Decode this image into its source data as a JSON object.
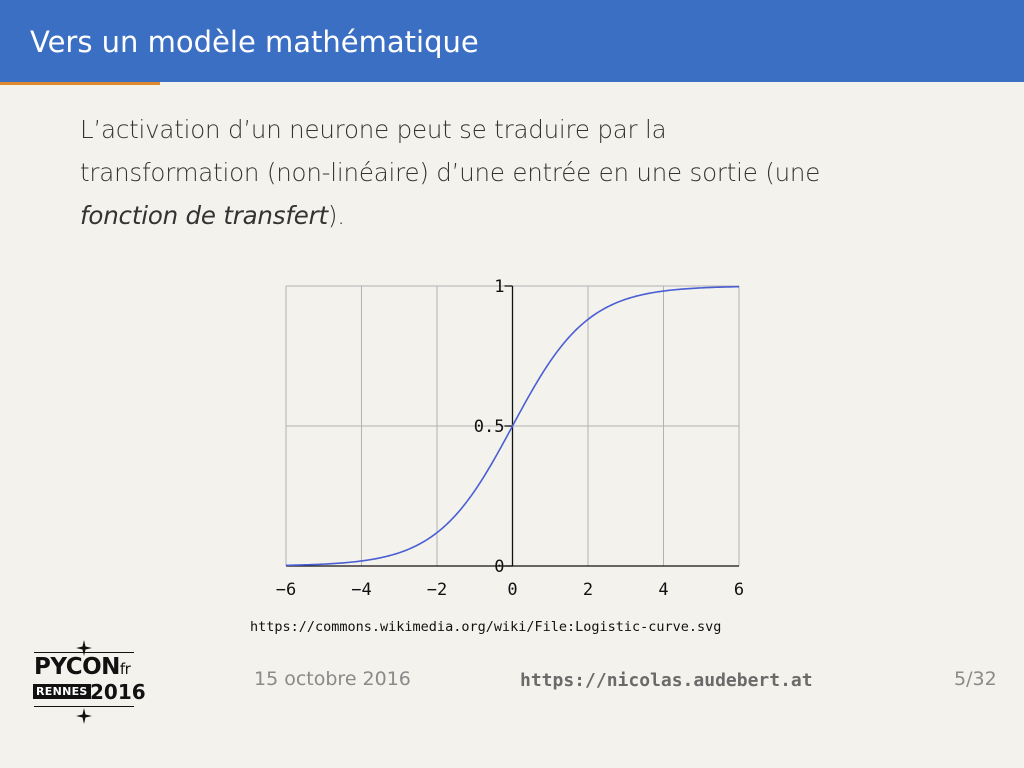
{
  "slide": {
    "title": "Vers un modèle mathématique",
    "text_line1": "L’activation d’un neurone peut se traduire par la",
    "text_line2": "transformation (non-linéaire) d’une entrée en une sortie (une",
    "text_emphasis": "fonction de transfert",
    "text_end": ")."
  },
  "source_url": "https://commons.wikimedia.org/wiki/File:Logistic-curve.svg",
  "footer": {
    "date": "15 octobre 2016",
    "url": "https://nicolas.audebert.at",
    "page": "5/32"
  },
  "logo": {
    "top": "PYCON",
    "fr": "fr",
    "city": "RENNES",
    "year": "2016"
  },
  "colors": {
    "header": "#3b6fc4",
    "accent": "#e08a2e",
    "curve": "#4a5fd4"
  },
  "chart_data": {
    "type": "line",
    "xlim": [
      -6,
      6
    ],
    "ylim": [
      0,
      1
    ],
    "x_ticks": [
      "−6",
      "−4",
      "−2",
      "0",
      "2",
      "4",
      "6"
    ],
    "y_ticks": [
      "0",
      "0.5",
      "1"
    ],
    "grid": true,
    "series": [
      {
        "x": [
          -6,
          -5,
          -4,
          -3,
          -2,
          -1.5,
          -1,
          -0.5,
          0,
          0.5,
          1,
          1.5,
          2,
          3,
          4,
          5,
          6
        ],
        "y": [
          0.0025,
          0.0067,
          0.018,
          0.047,
          0.119,
          0.182,
          0.269,
          0.378,
          0.5,
          0.622,
          0.731,
          0.818,
          0.881,
          0.953,
          0.982,
          0.9933,
          0.9975
        ]
      }
    ]
  }
}
